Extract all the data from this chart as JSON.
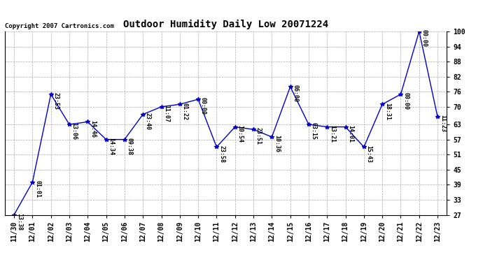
{
  "title": "Outdoor Humidity Daily Low 20071224",
  "copyright": "Copyright 2007 Cartronics.com",
  "x_labels": [
    "11/30",
    "12/01",
    "12/02",
    "12/03",
    "12/04",
    "12/05",
    "12/06",
    "12/07",
    "12/08",
    "12/09",
    "12/10",
    "12/11",
    "12/12",
    "12/13",
    "12/14",
    "12/15",
    "12/16",
    "12/17",
    "12/18",
    "12/19",
    "12/20",
    "12/21",
    "12/22",
    "12/23"
  ],
  "y_values": [
    27,
    40,
    75,
    63,
    64,
    57,
    57,
    67,
    70,
    71,
    73,
    54,
    62,
    61,
    58,
    78,
    63,
    62,
    62,
    54,
    71,
    75,
    100,
    66
  ],
  "point_labels": [
    "13:38",
    "01:01",
    "23:53",
    "13:06",
    "14:46",
    "14:34",
    "09:38",
    "23:40",
    "11:07",
    "01:22",
    "00:00",
    "23:58",
    "10:54",
    "23:51",
    "10:36",
    "06:00",
    "03:15",
    "13:21",
    "14:01",
    "15:43",
    "18:31",
    "00:00",
    "00:00",
    "11:23"
  ],
  "ylim_min": 27,
  "ylim_max": 100,
  "yticks": [
    27,
    33,
    39,
    45,
    51,
    57,
    63,
    70,
    76,
    82,
    88,
    94,
    100
  ],
  "line_color": "#0000CC",
  "marker_color": "#0000CC",
  "bg_color": "#FFFFFF",
  "grid_color": "#AAAAAA",
  "title_fontsize": 10,
  "label_fontsize": 6,
  "tick_fontsize": 7,
  "copyright_fontsize": 6.5
}
